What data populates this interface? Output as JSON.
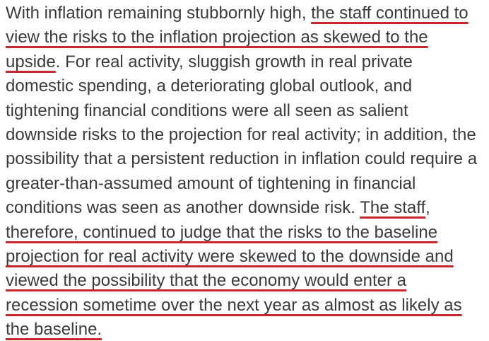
{
  "document": {
    "description": "text-excerpt-with-redline-underlines",
    "full_text": "With inflation remaining stubbornly high, the staff continued to view the risks to the inflation projection as skewed to the upside. For real activity, sluggish growth in real private domestic spending, a deteriorating global outlook, and tightening financial conditions were all seen as salient downside risks to the projection for real activity; in addition, the possibility that a persistent reduction in inflation could require a greater-than-assumed amount of tightening in financial conditions was seen as another downside risk. The staff, therefore, continued to judge that the risks to the baseline projection for real activity were skewed to the downside and viewed the possibility that the economy would enter a recession sometime over the next year as almost as likely as the baseline."
  },
  "colors": {
    "underline_red": "#C8272E",
    "text": "#3B3B3B",
    "background": "#FFFFFF"
  },
  "content": {
    "lines": [
      {
        "segments": [
          {
            "text": "With inflation remaining stubbornly high, ",
            "underline": false
          },
          {
            "text": "the staff continued to",
            "underline": true
          }
        ]
      },
      {
        "segments": [
          {
            "text": "view the risks to the inflation projection as skewed to the",
            "underline": true
          }
        ]
      },
      {
        "segments": [
          {
            "text": "upside",
            "underline": true
          },
          {
            "text": ". For real activity, sluggish growth in real private",
            "underline": false
          }
        ]
      },
      {
        "segments": [
          {
            "text": "domestic spending, a deteriorating global outlook, and",
            "underline": false
          }
        ]
      },
      {
        "segments": [
          {
            "text": "tightening financial conditions were all seen as salient",
            "underline": false
          }
        ]
      },
      {
        "segments": [
          {
            "text": "downside risks to the projection for real activity; in addition, the",
            "underline": false
          }
        ]
      },
      {
        "segments": [
          {
            "text": "possibility that a persistent reduction in inflation could require a",
            "underline": false
          }
        ]
      },
      {
        "segments": [
          {
            "text": "greater-than-assumed amount of tightening in financial",
            "underline": false
          }
        ]
      },
      {
        "segments": [
          {
            "text": "conditions was seen as another downside risk. ",
            "underline": false
          },
          {
            "text": "The staff",
            "underline": true
          },
          {
            "text": ",",
            "underline": false
          }
        ]
      },
      {
        "segments": [
          {
            "text": "therefore, continued to judge that the risks to the baseline",
            "underline": true
          }
        ]
      },
      {
        "segments": [
          {
            "text": "projection for real activity were skewed to the downside and",
            "underline": true
          }
        ]
      },
      {
        "segments": [
          {
            "text": "viewed the possibility that the economy would enter a",
            "underline": true
          }
        ]
      },
      {
        "segments": [
          {
            "text": "recession sometime over the next year as almost as likely as",
            "underline": true
          }
        ]
      },
      {
        "segments": [
          {
            "text": "the baseline.",
            "underline": true
          }
        ]
      }
    ]
  }
}
